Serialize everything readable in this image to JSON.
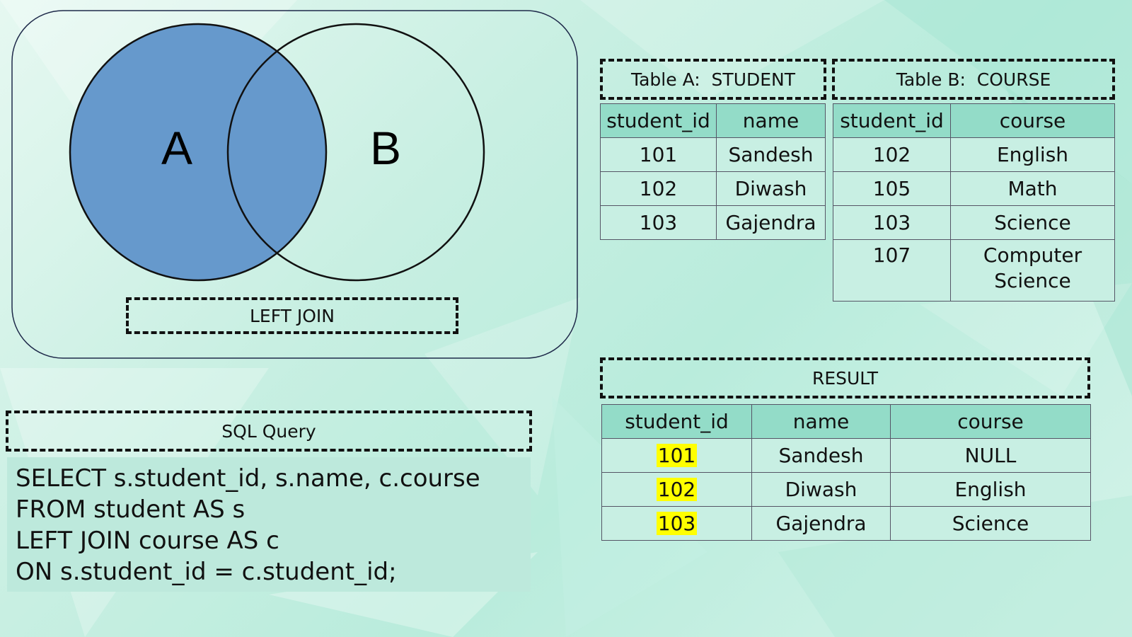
{
  "venn": {
    "label_a": "A",
    "label_b": "B",
    "caption": "LEFT JOIN",
    "fill_color": "#6699cc"
  },
  "table_a": {
    "title": "Table A:  STUDENT",
    "headers": [
      "student_id",
      "name"
    ],
    "rows": [
      [
        "101",
        "Sandesh"
      ],
      [
        "102",
        "Diwash"
      ],
      [
        "103",
        "Gajendra"
      ]
    ]
  },
  "table_b": {
    "title": "Table B:  COURSE",
    "headers": [
      "student_id",
      "course"
    ],
    "rows": [
      [
        "102",
        "English"
      ],
      [
        "105",
        "Math"
      ],
      [
        "103",
        "Science"
      ],
      [
        "107",
        "Computer Science"
      ]
    ]
  },
  "result": {
    "title": "RESULT",
    "headers": [
      "student_id",
      "name",
      "course"
    ],
    "rows": [
      [
        "101",
        "Sandesh",
        "NULL"
      ],
      [
        "102",
        "Diwash",
        "English"
      ],
      [
        "103",
        "Gajendra",
        "Science"
      ]
    ],
    "highlight_color": "#ffff00"
  },
  "sql": {
    "title": "SQL Query",
    "lines": [
      "SELECT s.student_id, s.name, c.course",
      "FROM student AS s",
      "LEFT JOIN course AS c",
      "ON s.student_id = c.student_id;"
    ]
  }
}
